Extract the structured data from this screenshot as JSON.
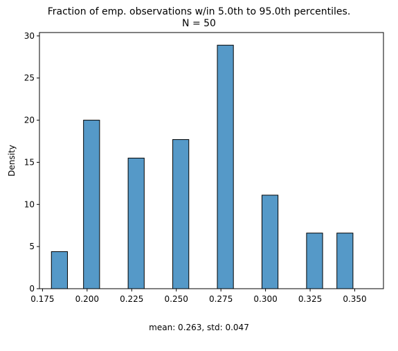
{
  "chart_data": {
    "type": "bar",
    "title": "Fraction of emp. observations w/in 5.0th to 95.0th percentiles.",
    "subtitle": "N = 50",
    "xlabel": "",
    "ylabel": "Density",
    "xlim": [
      0.1733,
      0.3661
    ],
    "ylim": [
      0,
      30.4
    ],
    "xticks": [
      "0.175",
      "0.200",
      "0.225",
      "0.250",
      "0.275",
      "0.300",
      "0.325",
      "0.350"
    ],
    "yticks": [
      "0",
      "5",
      "10",
      "15",
      "20",
      "25",
      "30"
    ],
    "bin_width": 0.009,
    "bins": [
      {
        "left": 0.18,
        "density": 4.4
      },
      {
        "left": 0.198,
        "density": 20.0
      },
      {
        "left": 0.223,
        "density": 15.5
      },
      {
        "left": 0.248,
        "density": 17.7
      },
      {
        "left": 0.273,
        "density": 28.9
      },
      {
        "left": 0.298,
        "density": 11.1
      },
      {
        "left": 0.323,
        "density": 6.6
      },
      {
        "left": 0.34,
        "density": 6.6
      }
    ],
    "bar_color": "#5599c8",
    "edge_color": "#000000",
    "grid": false,
    "annotation": "mean: 0.263, std: 0.047"
  }
}
